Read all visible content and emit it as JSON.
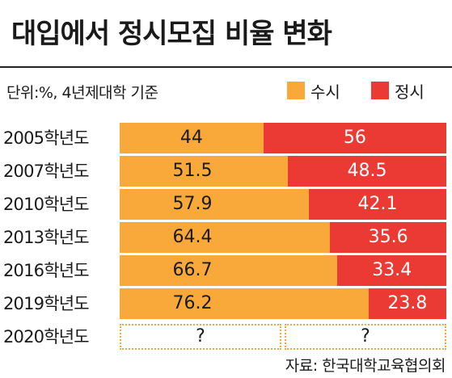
{
  "title": "대입에서 정시모집 비율 변화",
  "unit_note": "단위:%, 4년제대학 기준",
  "source": "자료: 한국대학교육협의회",
  "colors": {
    "susi": "#f9a93a",
    "jeongsi": "#ea3a33",
    "pending_border": "#f0a94a",
    "text_dark": "#1a1a1a",
    "text_light": "#ffffff"
  },
  "chart_data": {
    "type": "bar",
    "orientation": "horizontal",
    "stacked": true,
    "percent_scale": [
      0,
      100
    ],
    "legend_position": "top-right",
    "categories": [
      "2005학년도",
      "2007학년도",
      "2010학년도",
      "2013학년도",
      "2016학년도",
      "2019학년도",
      "2020학년도"
    ],
    "series": [
      {
        "name": "수시",
        "values": [
          44,
          51.5,
          57.9,
          64.4,
          66.7,
          76.2,
          null
        ],
        "labels": [
          "44",
          "51.5",
          "57.9",
          "64.4",
          "66.7",
          "76.2",
          "?"
        ]
      },
      {
        "name": "정시",
        "values": [
          56,
          48.5,
          42.1,
          35.6,
          33.4,
          23.8,
          null
        ],
        "labels": [
          "56",
          "48.5",
          "42.1",
          "35.6",
          "33.4",
          "23.8",
          "?"
        ]
      }
    ]
  }
}
